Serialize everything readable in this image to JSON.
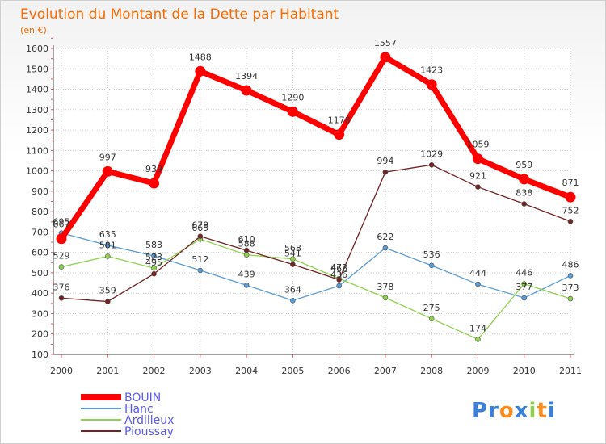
{
  "chart_data": {
    "type": "line",
    "title": "Evolution du Montant de la Dette par Habitant",
    "subtitle": "(en €)",
    "x": [
      "2000",
      "2001",
      "2002",
      "2003",
      "2004",
      "2005",
      "2006",
      "2007",
      "2008",
      "2009",
      "2010",
      "2011"
    ],
    "ylim": [
      100,
      1600
    ],
    "yticks": [
      100,
      200,
      300,
      400,
      500,
      600,
      700,
      800,
      900,
      1000,
      1100,
      1200,
      1300,
      1400,
      1500,
      1600
    ],
    "grid": true,
    "legend_position": "bottom-left",
    "series": [
      {
        "name": "BOUIN",
        "color": "#ff0000",
        "values": [
          667,
          997,
          939,
          1488,
          1394,
          1290,
          1178,
          1557,
          1423,
          1059,
          959,
          871
        ]
      },
      {
        "name": "Hanc",
        "color": "#5b9bd5",
        "values": [
          695,
          635,
          583,
          512,
          439,
          364,
          436,
          622,
          536,
          444,
          377,
          486
        ]
      },
      {
        "name": "Ardilleux",
        "color": "#8fd14f",
        "values": [
          529,
          581,
          523,
          665,
          588,
          568,
          472,
          378,
          275,
          174,
          446,
          373
        ]
      },
      {
        "name": "Pioussay",
        "color": "#722222",
        "values": [
          376,
          359,
          495,
          679,
          610,
          541,
          466,
          994,
          1029,
          921,
          838,
          752
        ]
      }
    ]
  },
  "brand": {
    "letters": [
      "P",
      "r",
      "o",
      "x",
      "i",
      "t",
      "i"
    ],
    "colors": [
      "#3a7fd9",
      "#3a7fd9",
      "#ff8c1a",
      "#3a7fd9",
      "#8fd14f",
      "#ff8c1a",
      "#3a7fd9"
    ]
  }
}
